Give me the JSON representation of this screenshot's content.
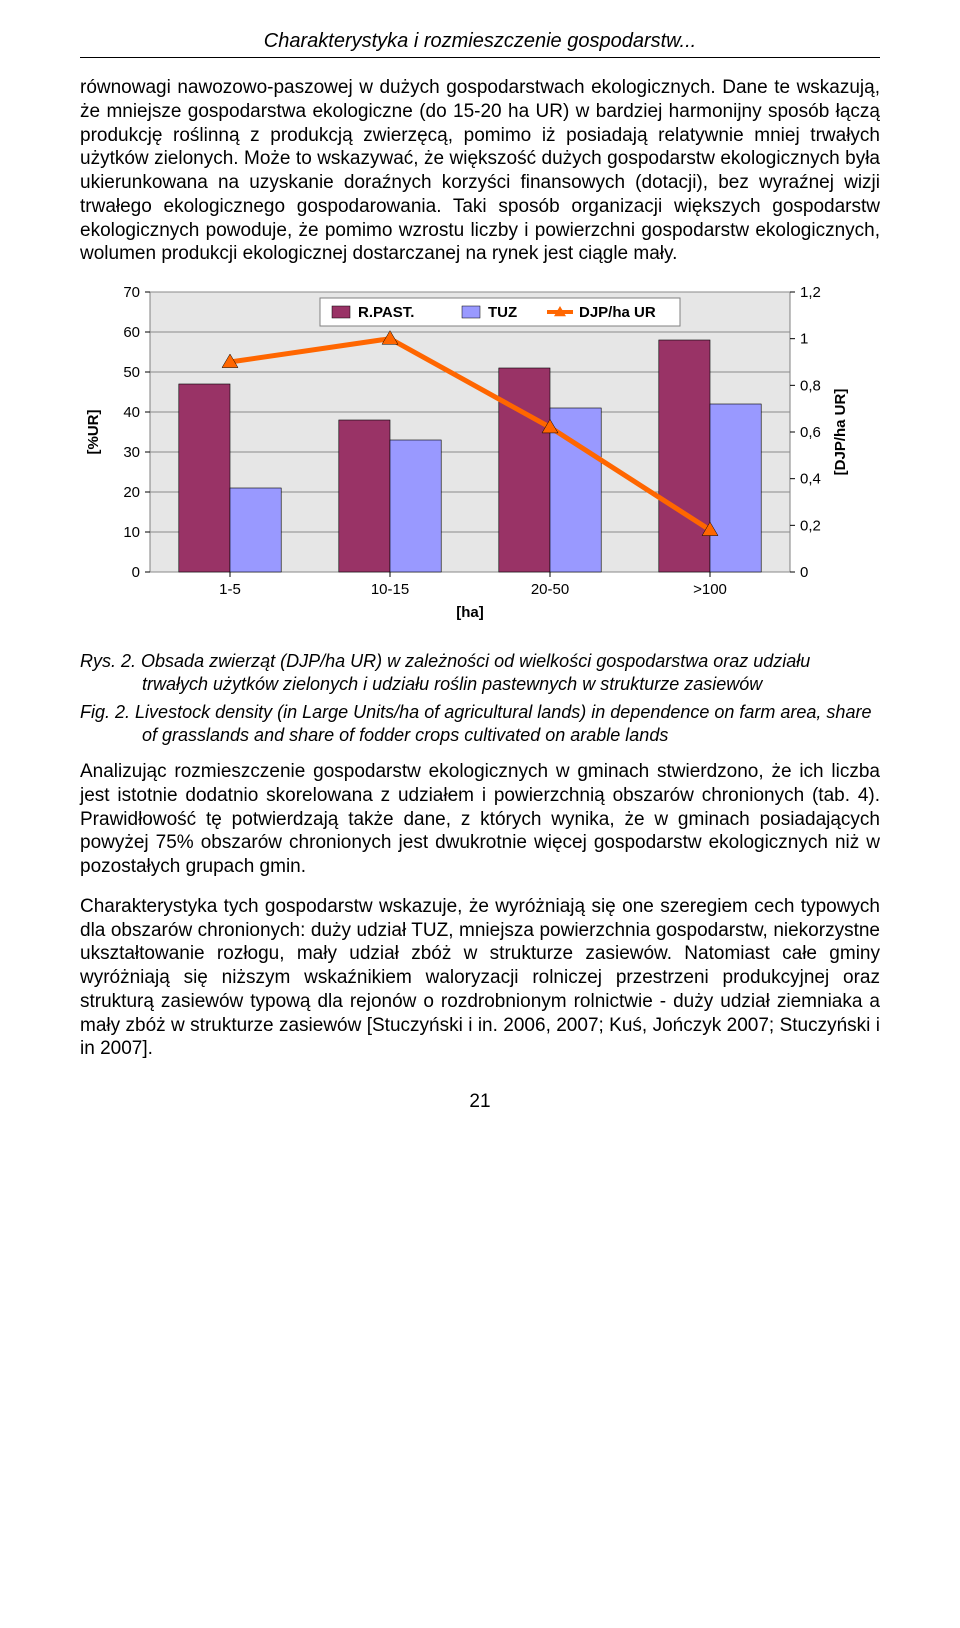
{
  "header": {
    "title": "Charakterystyka i rozmieszczenie gospodarstw..."
  },
  "paragraphs": {
    "p1": "równowagi nawozowo-paszowej w dużych gospodarstwach ekologicznych. Dane te wskazują, że mniejsze gospodarstwa ekologiczne (do 15-20 ha UR) w bardziej harmonijny sposób łączą produkcję roślinną z produkcją zwierzęcą, pomimo iż posiadają relatywnie mniej trwałych użytków zielonych. Może to wskazywać, że większość dużych gospodarstw ekologicznych była ukierunkowana na uzyskanie doraźnych korzyści finansowych (dotacji), bez wyraźnej wizji trwałego ekologicznego gospodarowania. Taki sposób organizacji większych gospodarstw ekologicznych powoduje, że pomimo wzrostu liczby i powierzchni gospodarstw ekologicznych, wolumen produkcji ekologicznej dostarczanej na rynek jest ciągle mały.",
    "p2": "Analizując rozmieszczenie gospodarstw ekologicznych w gminach stwierdzono, że ich liczba jest istotnie dodatnio skorelowana z udziałem i powierzchnią obszarów chronionych (tab. 4). Prawidłowość tę potwierdzają także dane, z których wynika, że w gminach posiadających powyżej 75% obszarów chronionych jest dwukrotnie więcej gospodarstw ekologicznych niż w pozostałych grupach gmin.",
    "p3": "Charakterystyka tych gospodarstw wskazuje, że wyróżniają się one szeregiem cech typowych dla obszarów chronionych: duży udział TUZ, mniejsza powierzchnia gospodarstw, niekorzystne ukształtowanie rozłogu, mały udział zbóż w strukturze zasiewów. Natomiast całe gminy wyróżniają się niższym wskaźnikiem waloryzacji rolniczej przestrzeni produkcyjnej oraz strukturą zasiewów typową dla rejonów o rozdrobnionym rolnictwie - duży udział ziemniaka a mały zbóż w strukturze zasiewów [Stuczyński i in. 2006, 2007; Kuś, Jończyk 2007; Stuczyński i in 2007]."
  },
  "chart": {
    "type": "bar-line-combo",
    "categories": [
      "1-5",
      "10-15",
      "20-50",
      ">100"
    ],
    "series": [
      {
        "name": "R.PAST.",
        "color": "#993366",
        "values": [
          47,
          38,
          51,
          58
        ]
      },
      {
        "name": "TUZ",
        "color": "#9999ff",
        "values": [
          21,
          33,
          41,
          42
        ]
      }
    ],
    "line_series": {
      "name": "DJP/ha UR",
      "color": "#ff6600",
      "values": [
        0.9,
        1.0,
        0.62,
        0.18
      ],
      "marker": "triangle",
      "marker_color": "#ff6600",
      "line_width": 5
    },
    "y_left": {
      "label": "[%UR]",
      "min": 0,
      "max": 70,
      "step": 10
    },
    "y_right": {
      "label": "[DJP/ha UR]",
      "min": 0,
      "max": 1.2,
      "step": 0.2,
      "decimal_sep": ","
    },
    "x_label": "[ha]",
    "plot_bg": "#e6e6e6",
    "grid_color": "#8a8a8a",
    "axis_color": "#808080",
    "font_size": 15,
    "bar_width": 0.32,
    "bar_gap": 0.0,
    "legend": {
      "bg": "#ffffff",
      "border": "#808080",
      "items": [
        "R.PAST.",
        "TUZ",
        "DJP/ha UR"
      ]
    }
  },
  "figure_caption": {
    "pl_label": "Rys. 2.",
    "pl_text": "Obsada zwierząt (DJP/ha UR) w zależności od wielkości gospodarstwa oraz udziału trwałych użytków zielonych i udziału roślin pastewnych w strukturze zasiewów",
    "en_label": "Fig. 2.",
    "en_text": "Livestock density (in Large Units/ha of agricultural lands) in dependence on farm area, share of grasslands and share of fodder crops cultivated on arable lands"
  },
  "page_number": "21"
}
